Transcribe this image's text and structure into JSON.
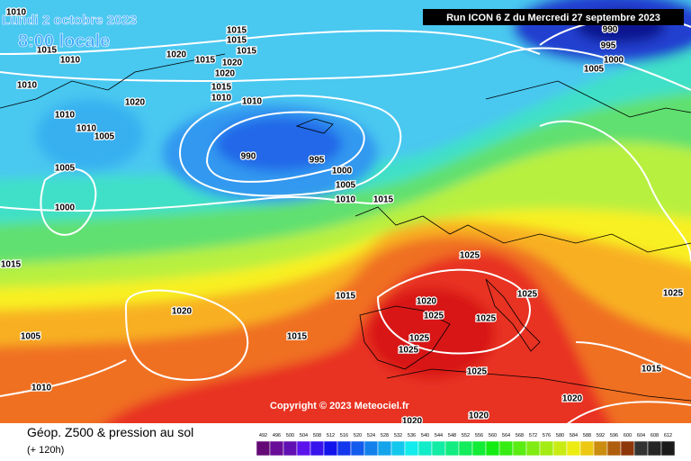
{
  "header": {
    "date": "Lundi 2 octobre 2023",
    "time": "8:00 locale",
    "run": "Run ICON 6 Z du Mercredi 27 septembre 2023"
  },
  "copyright": "Copyright © 2023 Meteociel.fr",
  "legend": {
    "title": "Géop. Z500 & pression au sol",
    "subtitle": "(+ 120h)",
    "scale": [
      492,
      496,
      500,
      504,
      508,
      512,
      516,
      520,
      524,
      528,
      532,
      536,
      540,
      544,
      548,
      552,
      556,
      560,
      564,
      568,
      572,
      576,
      580,
      584,
      588,
      592,
      596,
      600,
      604,
      608,
      612
    ]
  },
  "isobar_labels": [
    "1010",
    "1015",
    "1015",
    "1020",
    "1015",
    "1015",
    "1020",
    "1020",
    "1015",
    "1010",
    "1010",
    "1015",
    "1010",
    "1010",
    "1020",
    "1010",
    "1005",
    "1010",
    "990",
    "995",
    "1000",
    "1005",
    "1010",
    "1015",
    "1005",
    "1000",
    "1015",
    "990",
    "995",
    "1000",
    "1005",
    "1025",
    "1015",
    "1025",
    "1020",
    "1025",
    "1025",
    "1020",
    "1005",
    "1015",
    "1025",
    "1025",
    "1010",
    "1025",
    "1015",
    "1020",
    "1025",
    "1020",
    "1020"
  ]
}
